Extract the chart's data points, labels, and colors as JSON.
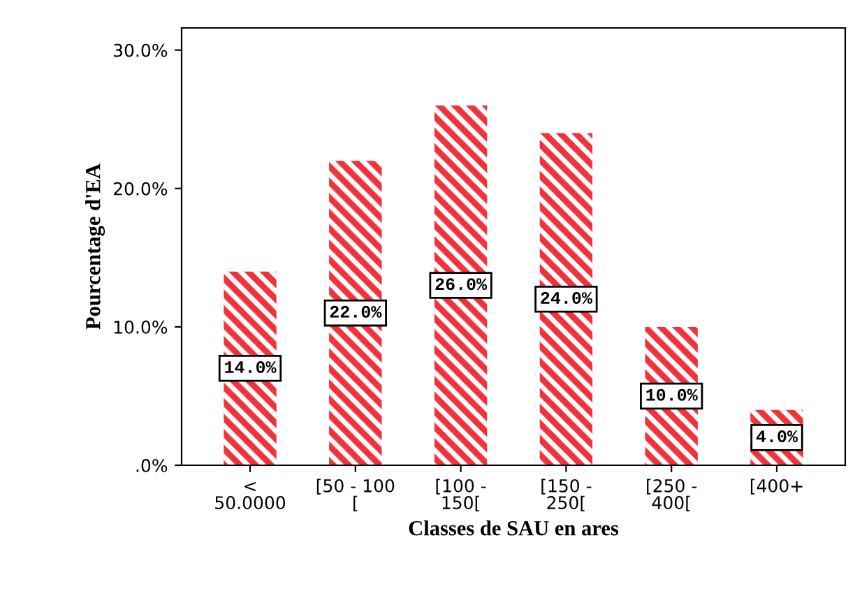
{
  "chart_data": {
    "type": "bar",
    "xlabel": "Classes de SAU en ares",
    "ylabel": "Pourcentage d'EA",
    "categories": [
      "<\n50.0000",
      "[50 - 100\n[",
      "[100 -\n150[",
      "[150 -\n250[",
      "[250 -\n400[",
      "[400+"
    ],
    "values": [
      14.0,
      22.0,
      26.0,
      24.0,
      10.0,
      4.0
    ],
    "value_labels": [
      "14.0%",
      "22.0%",
      "26.0%",
      "24.0%",
      "10.0%",
      "4.0%"
    ],
    "color": "#f0323c",
    "ylim": [
      0,
      31.6
    ],
    "yticks": [
      {
        "value": 0,
        "label": ".0%"
      },
      {
        "value": 10,
        "label": "10.0%"
      },
      {
        "value": 20,
        "label": "20.0%"
      },
      {
        "value": 30,
        "label": "30.0%"
      }
    ],
    "grid": false,
    "legend": false
  }
}
